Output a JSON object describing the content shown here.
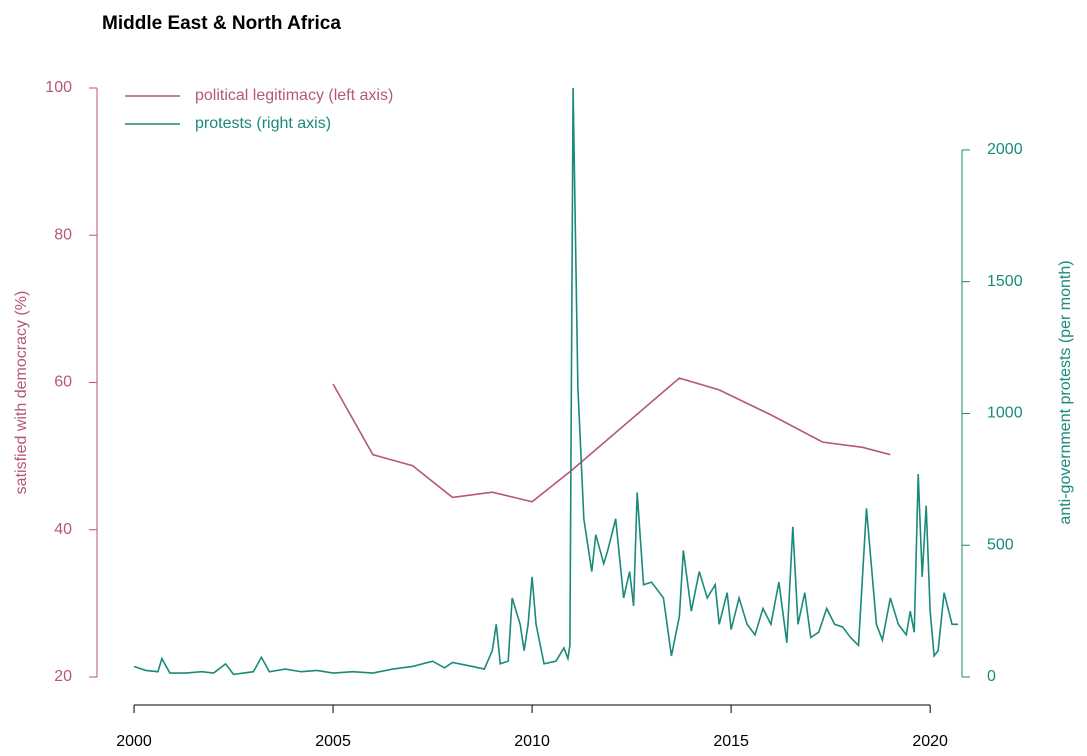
{
  "chart_data": {
    "type": "line",
    "title": "Middle East & North Africa",
    "y_label": "satisfied with democracy (%)",
    "y2_label": "anti-government protests (per month)",
    "xlim": [
      1999.07,
      2020.8
    ],
    "xticks": [
      2000,
      2005,
      2010,
      2015,
      2020
    ],
    "ylim": [
      20,
      100
    ],
    "yticks": [
      20,
      40,
      60,
      80,
      100
    ],
    "y2lim": [
      0,
      2235
    ],
    "y2ticks": [
      0,
      500,
      1000,
      1500,
      2000
    ],
    "legend": "top-left",
    "series": [
      {
        "name": "political legitimacy (left axis)",
        "color": "#b5577a",
        "x": [
          2005,
          2006,
          2007,
          2008,
          2009,
          2010,
          2011,
          2013.7,
          2014.7,
          2016,
          2017.3,
          2018.3,
          2019
        ],
        "values": [
          59.8,
          50.2,
          48.7,
          44.4,
          45.1,
          43.8,
          48.1,
          60.6,
          59,
          55.6,
          51.9,
          51.2,
          50.2
        ]
      },
      {
        "name": "protests (right axis)",
        "color": "#1a8a7a",
        "axis": "y2",
        "x": [
          2000.0,
          2000.3,
          2000.6,
          2000.7,
          2000.9,
          2001.3,
          2001.7,
          2002.0,
          2002.3,
          2002.5,
          2003.0,
          2003.2,
          2003.4,
          2003.8,
          2004.2,
          2004.6,
          2005.0,
          2005.5,
          2006.0,
          2006.5,
          2007.0,
          2007.5,
          2007.8,
          2008.0,
          2008.5,
          2008.8,
          2009.0,
          2009.1,
          2009.2,
          2009.4,
          2009.5,
          2009.7,
          2009.8,
          2009.9,
          2010.0,
          2010.1,
          2010.3,
          2010.6,
          2010.8,
          2010.9,
          2010.95,
          2011.03,
          2011.15,
          2011.3,
          2011.5,
          2011.6,
          2011.8,
          2011.9,
          2012.1,
          2012.2,
          2012.3,
          2012.45,
          2012.55,
          2012.64,
          2012.8,
          2013.0,
          2013.2,
          2013.3,
          2013.5,
          2013.7,
          2013.8,
          2014.0,
          2014.2,
          2014.4,
          2014.6,
          2014.7,
          2014.9,
          2015.0,
          2015.2,
          2015.4,
          2015.6,
          2015.8,
          2016.0,
          2016.2,
          2016.4,
          2016.55,
          2016.68,
          2016.85,
          2017.0,
          2017.2,
          2017.4,
          2017.6,
          2017.8,
          2018.0,
          2018.2,
          2018.4,
          2018.65,
          2018.8,
          2019.0,
          2019.2,
          2019.4,
          2019.5,
          2019.6,
          2019.7,
          2019.8,
          2019.9,
          2020.0,
          2020.1,
          2020.2,
          2020.35,
          2020.55,
          2020.7
        ],
        "values": [
          40,
          25,
          20,
          70,
          15,
          15,
          20,
          15,
          50,
          10,
          20,
          75,
          20,
          30,
          20,
          25,
          15,
          20,
          15,
          30,
          40,
          60,
          35,
          55,
          40,
          30,
          100,
          200,
          50,
          60,
          300,
          200,
          100,
          200,
          380,
          200,
          50,
          60,
          110,
          70,
          120,
          2235,
          1100,
          600,
          400,
          540,
          430,
          480,
          600,
          450,
          300,
          400,
          270,
          700,
          350,
          360,
          320,
          300,
          80,
          230,
          480,
          250,
          400,
          300,
          350,
          200,
          320,
          180,
          300,
          200,
          160,
          260,
          200,
          360,
          130,
          570,
          200,
          320,
          150,
          170,
          260,
          200,
          190,
          150,
          120,
          640,
          200,
          140,
          300,
          200,
          160,
          250,
          170,
          770,
          380,
          650,
          250,
          80,
          100,
          320,
          200,
          200
        ]
      }
    ]
  }
}
